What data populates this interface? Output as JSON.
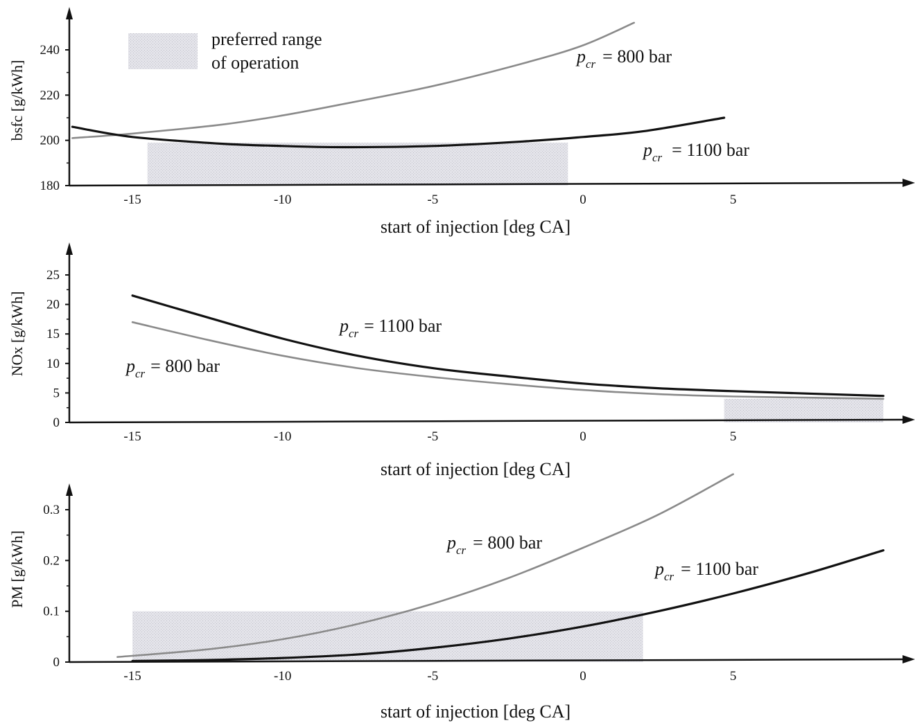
{
  "colors": {
    "series_1100": "#111111",
    "series_800": "#8a8a8a",
    "preferred_range": "#d6d6dc",
    "axis": "#111111"
  },
  "legend": {
    "line1": "preferred  range",
    "line2": "of operation"
  },
  "chart_data": [
    {
      "type": "line",
      "xlabel": "start of injection [deg CA]",
      "ylabel": "bsfc [g/kWh]",
      "xlim": [
        -17,
        10
      ],
      "ylim": [
        180,
        250
      ],
      "xticks": [
        "-15",
        "-10",
        "-5",
        "0",
        "5"
      ],
      "yticks": [
        "180",
        "200",
        "220",
        "240"
      ],
      "preferred_range": {
        "x": [
          -14.5,
          -0.5
        ],
        "y": [
          180,
          199
        ]
      },
      "series": [
        {
          "name": "800 bar",
          "x": [
            -17,
            -15,
            -12,
            -10,
            -8,
            -5,
            -2,
            0,
            1.7
          ],
          "values": [
            201,
            203,
            207,
            211,
            216,
            224,
            234,
            242,
            252
          ]
        },
        {
          "name": "1100 bar",
          "x": [
            -17,
            -15,
            -12,
            -10,
            -8,
            -5,
            -2,
            0,
            2,
            4.7
          ],
          "values": [
            206,
            201.5,
            198.5,
            197.5,
            197,
            197.5,
            199.5,
            201.5,
            204,
            210
          ]
        }
      ],
      "annotations": [
        {
          "sym": "p",
          "sub": "cr",
          "text": "= 800 bar"
        },
        {
          "sym": "p",
          "sub": "cr",
          "text": "= 1100 bar"
        }
      ]
    },
    {
      "type": "line",
      "xlabel": "start of injection [deg CA]",
      "ylabel": "NOx [g/kWh]",
      "xlim": [
        -17,
        10
      ],
      "ylim": [
        0,
        28
      ],
      "xticks": [
        "-15",
        "-10",
        "-5",
        "0",
        "5"
      ],
      "yticks": [
        "0",
        "5",
        "10",
        "15",
        "20",
        "25"
      ],
      "preferred_range": {
        "x": [
          4.7,
          10
        ],
        "y": [
          0,
          4
        ]
      },
      "series": [
        {
          "name": "1100 bar",
          "x": [
            -15,
            -12.5,
            -10,
            -7.5,
            -5,
            -2.5,
            0,
            2.5,
            5,
            7.5,
            10
          ],
          "values": [
            21.5,
            17.8,
            14.2,
            11.3,
            9.2,
            7.8,
            6.6,
            5.8,
            5.3,
            4.9,
            4.5
          ]
        },
        {
          "name": "800 bar",
          "x": [
            -15,
            -12.5,
            -10,
            -7.5,
            -5,
            -2.5,
            0,
            2.5,
            5,
            7.5,
            10
          ],
          "values": [
            17.0,
            14.0,
            11.3,
            9.2,
            7.7,
            6.5,
            5.5,
            4.8,
            4.4,
            4.2,
            4.0
          ]
        }
      ],
      "annotations": [
        {
          "sym": "p",
          "sub": "cr",
          "text": "= 1100 bar"
        },
        {
          "sym": "p",
          "sub": "cr",
          "text": "= 800 bar"
        }
      ]
    },
    {
      "type": "line",
      "xlabel": "start of injection [deg CA]",
      "ylabel": "PM [g/kWh]",
      "xlim": [
        -17,
        10
      ],
      "ylim": [
        0,
        0.35
      ],
      "xticks": [
        "-15",
        "-10",
        "-5",
        "0",
        "5"
      ],
      "yticks": [
        "0",
        "0.1",
        "0.2",
        "0.3"
      ],
      "preferred_range": {
        "x": [
          -15,
          2
        ],
        "y": [
          0,
          0.1
        ]
      },
      "series": [
        {
          "name": "800 bar",
          "x": [
            -15.5,
            -12.5,
            -10,
            -7.5,
            -5,
            -2.5,
            0,
            2.5,
            5
          ],
          "values": [
            0.01,
            0.025,
            0.045,
            0.075,
            0.115,
            0.165,
            0.225,
            0.29,
            0.37
          ]
        },
        {
          "name": "1100 bar",
          "x": [
            -15,
            -12.5,
            -10,
            -7.5,
            -5,
            -2.5,
            0,
            2.5,
            5,
            7.5,
            10
          ],
          "values": [
            0.002,
            0.004,
            0.008,
            0.015,
            0.028,
            0.046,
            0.07,
            0.1,
            0.135,
            0.175,
            0.22
          ]
        }
      ],
      "annotations": [
        {
          "sym": "p",
          "sub": "cr",
          "text": "= 800 bar"
        },
        {
          "sym": "p",
          "sub": "cr",
          "text": "= 1100 bar"
        }
      ]
    }
  ]
}
